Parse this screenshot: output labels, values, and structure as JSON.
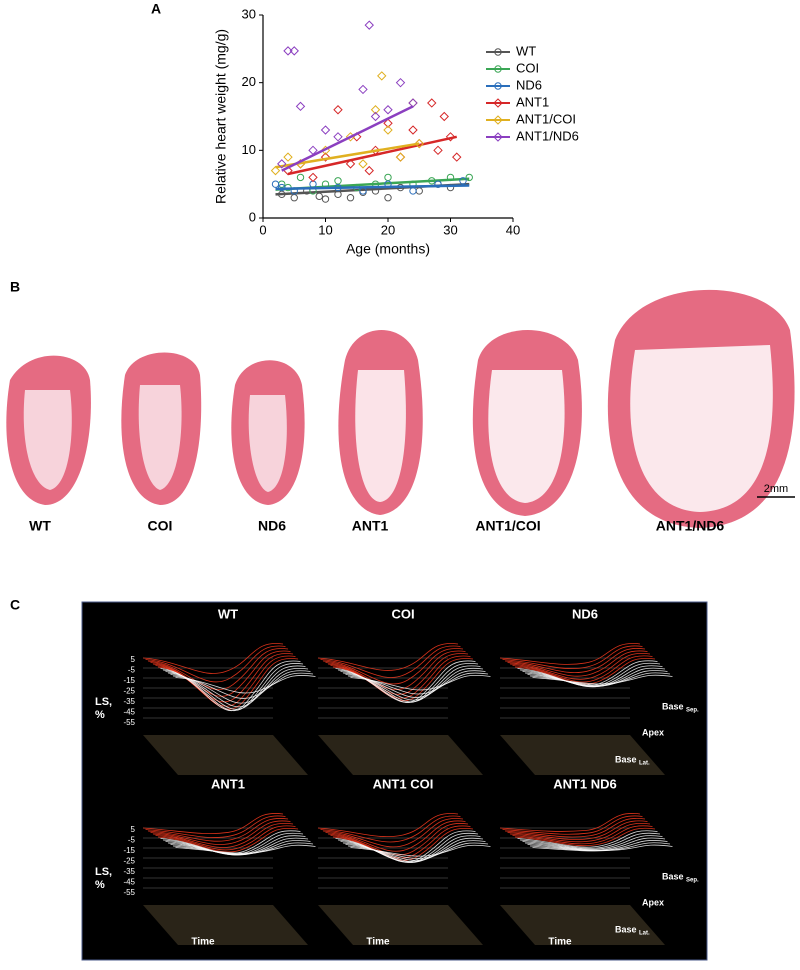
{
  "panel_labels": [
    "A",
    "B",
    "C"
  ],
  "chart_data": {
    "type": "scatter",
    "x_label": "Age (months)",
    "y_label": "Relative heart weight (mg/g)",
    "xlim": [
      0,
      40
    ],
    "ylim": [
      0,
      30
    ],
    "xticks": [
      0,
      10,
      20,
      30,
      40
    ],
    "yticks": [
      0,
      10,
      20,
      30
    ],
    "legend": "upper right",
    "series": [
      {
        "name": "WT",
        "color": "#555555",
        "marker": "circle",
        "x": [
          3,
          5,
          7,
          9,
          10,
          12,
          14,
          16,
          18,
          20,
          22,
          25,
          28,
          30
        ],
        "values": [
          3.5,
          3,
          4,
          3.2,
          2.8,
          3.5,
          3,
          3.8,
          4,
          3,
          4.5,
          4,
          5,
          4.5
        ],
        "fit": {
          "x": [
            2,
            33
          ],
          "y": [
            3.5,
            5
          ]
        }
      },
      {
        "name": "COI",
        "color": "#3aa655",
        "marker": "circle",
        "x": [
          3,
          4,
          6,
          8,
          10,
          12,
          15,
          18,
          20,
          24,
          27,
          30,
          33
        ],
        "values": [
          5,
          4.5,
          6,
          4,
          5,
          5.5,
          4.5,
          5,
          6,
          5,
          5.5,
          6,
          6
        ],
        "fit": {
          "x": [
            2,
            33
          ],
          "y": [
            4.2,
            5.8
          ]
        }
      },
      {
        "name": "ND6",
        "color": "#2a6ebb",
        "marker": "circle",
        "x": [
          2,
          3,
          5,
          8,
          12,
          16,
          20,
          24,
          28,
          32
        ],
        "values": [
          5,
          4.5,
          4,
          5,
          4.5,
          4,
          5,
          4,
          5,
          5.5
        ],
        "fit": {
          "x": [
            2,
            33
          ],
          "y": [
            4.3,
            4.8
          ]
        }
      },
      {
        "name": "ANT1",
        "color": "#d62728",
        "marker": "diamond",
        "x": [
          4,
          6,
          8,
          10,
          12,
          14,
          15,
          17,
          18,
          20,
          22,
          24,
          25,
          27,
          28,
          29,
          30,
          31
        ],
        "values": [
          7,
          8,
          6,
          9,
          16,
          8,
          12,
          7,
          10,
          14,
          9,
          13,
          11,
          17,
          10,
          15,
          12,
          9
        ],
        "fit": {
          "x": [
            4,
            31
          ],
          "y": [
            6.5,
            12
          ]
        }
      },
      {
        "name": "ANT1/COI",
        "color": "#e0b020",
        "marker": "diamond",
        "x": [
          2,
          4,
          6,
          10,
          14,
          16,
          18,
          19,
          20,
          22,
          24,
          25
        ],
        "values": [
          7,
          9,
          8,
          10,
          12,
          8,
          16,
          21,
          13,
          9,
          17,
          11
        ],
        "fit": {
          "x": [
            2,
            25
          ],
          "y": [
            7.5,
            11
          ]
        }
      },
      {
        "name": "ANT1/ND6",
        "color": "#8b3fc0",
        "marker": "diamond",
        "x": [
          3,
          4,
          5,
          6,
          8,
          10,
          12,
          16,
          17,
          18,
          20,
          22,
          24
        ],
        "values": [
          8,
          24.7,
          24.7,
          16.5,
          10,
          13,
          12,
          19,
          28.5,
          15,
          16,
          20,
          17
        ],
        "fit": {
          "x": [
            3,
            24
          ],
          "y": [
            7,
            16.5
          ]
        }
      }
    ]
  },
  "panel_b": {
    "labels": [
      "WT",
      "COI",
      "ND6",
      "ANT1",
      "ANT1/COI",
      "ANT1/ND6"
    ],
    "scale_bar": "2mm"
  },
  "panel_c": {
    "titles": [
      "WT",
      "COI",
      "ND6",
      "ANT1",
      "ANT1 COI",
      "ANT1 ND6"
    ],
    "y_label": [
      "LS,",
      "%"
    ],
    "ticks": [
      "5",
      "-5",
      "-15",
      "-25",
      "-35",
      "-45",
      "-55"
    ],
    "time": "Time",
    "base": "Base",
    "sep": "Sep.",
    "apex": "Apex",
    "lat": "Lat."
  }
}
